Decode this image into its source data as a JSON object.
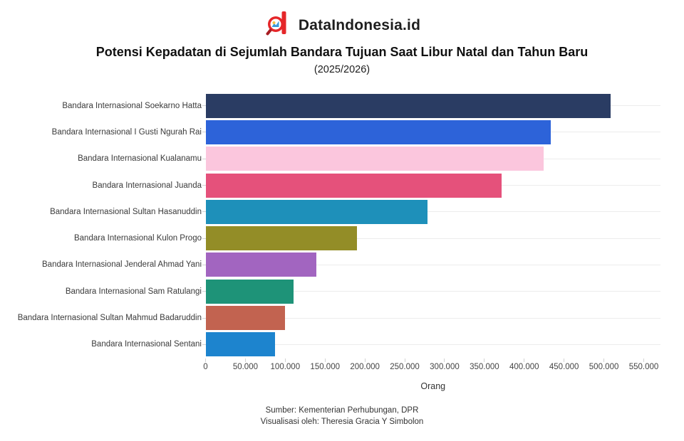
{
  "header": {
    "brand": "DataIndonesia.id",
    "logo_color": "#e52629"
  },
  "title": "Potensi Kepadatan di Sejumlah Bandara Tujuan Saat Libur Natal dan Tahun Baru",
  "subtitle": "(2025/2026)",
  "chart_data": {
    "type": "bar",
    "orientation": "horizontal",
    "title": "Potensi Kepadatan di Sejumlah Bandara Tujuan Saat Libur Natal dan Tahun Baru (2025/2026)",
    "categories": [
      "Bandara Internasional Soekarno Hatta",
      "Bandara Internasional I Gusti Ngurah Rai",
      "Bandara Internasional Kualanamu",
      "Bandara Internasional Juanda",
      "Bandara Internasional Sultan Hasanuddin",
      "Bandara Internasional Kulon Progo",
      "Bandara Internasional Jenderal Ahmad Yani",
      "Bandara Internasional Sam Ratulangi",
      "Bandara Internasional Sultan Mahmud Badaruddin",
      "Bandara Internasional Sentani"
    ],
    "values": [
      508000,
      433000,
      424000,
      372000,
      279000,
      190000,
      139000,
      110000,
      100000,
      87000
    ],
    "bar_colors": [
      "#2a3c63",
      "#2d63d9",
      "#fbc6dd",
      "#e5517b",
      "#1e90ba",
      "#938d27",
      "#a265c0",
      "#1e9378",
      "#c26350",
      "#1d84ce"
    ],
    "xlabel": "Orang",
    "ylabel": "",
    "xlim": [
      0,
      571000
    ],
    "xtick_values": [
      0,
      50000,
      100000,
      150000,
      200000,
      250000,
      300000,
      350000,
      400000,
      450000,
      500000,
      550000
    ],
    "xtick_labels": [
      "0",
      "50.000",
      "100.000",
      "150.000",
      "200.000",
      "250.000",
      "300.000",
      "350.000",
      "400.000",
      "450.000",
      "500.000",
      "550.000"
    ],
    "grid": "horizontal-only",
    "legend": "none"
  },
  "footer": {
    "source": "Sumber: Kementerian Perhubungan, DPR",
    "credit": "Visualisasi oleh: Theresia Gracia Y Simbolon"
  }
}
